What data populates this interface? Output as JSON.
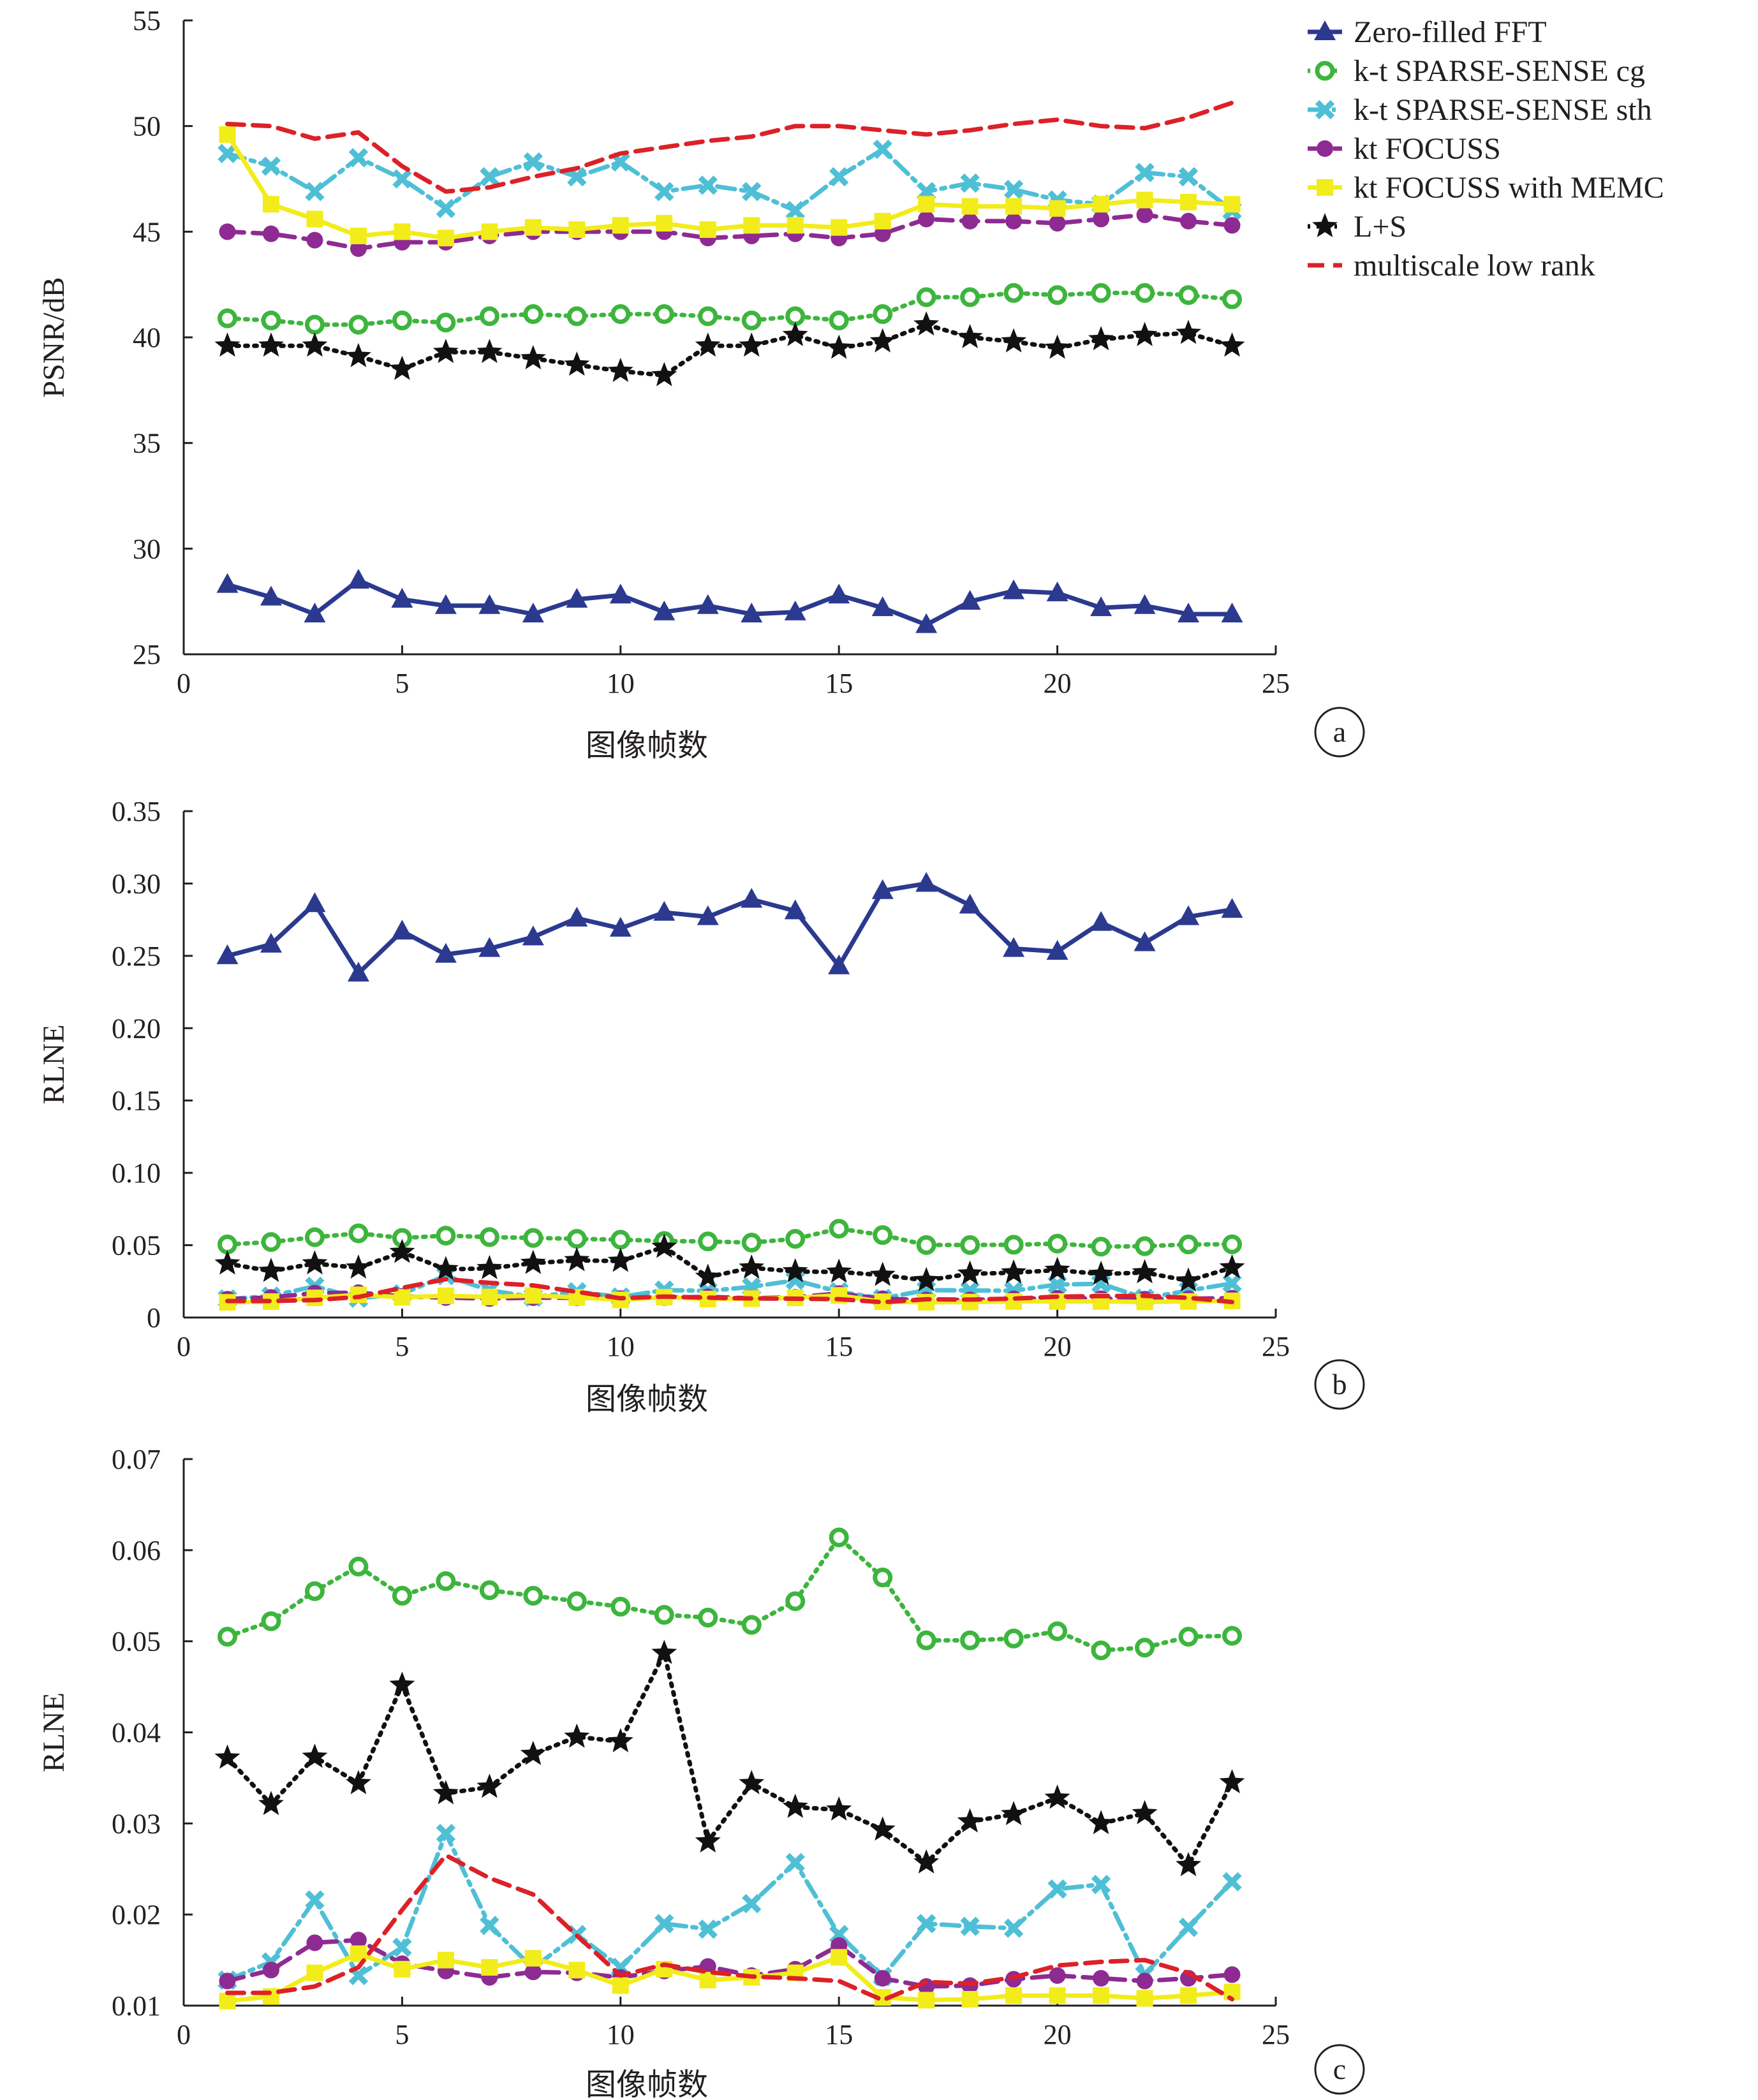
{
  "chart_data": [
    {
      "id": "a",
      "type": "line",
      "panel_label": "a",
      "xlabel": "图像帧数",
      "ylabel": "PSNR/dB",
      "xlim": [
        0,
        25
      ],
      "ylim": [
        25,
        55
      ],
      "xticks": [
        0,
        5,
        10,
        15,
        20,
        25
      ],
      "yticks": [
        25,
        30,
        35,
        40,
        45,
        50,
        55
      ],
      "x": [
        1,
        2,
        3,
        4,
        5,
        6,
        7,
        8,
        9,
        10,
        11,
        12,
        13,
        14,
        15,
        16,
        17,
        18,
        19,
        20,
        21,
        22,
        23,
        24
      ],
      "legend": true,
      "series": [
        {
          "key": "zf",
          "name": "Zero-filled FFT",
          "values": [
            28.3,
            27.7,
            26.9,
            28.5,
            27.6,
            27.3,
            27.3,
            26.9,
            27.6,
            27.8,
            27.0,
            27.3,
            26.9,
            27.0,
            27.8,
            27.2,
            26.4,
            27.5,
            28.0,
            27.9,
            27.2,
            27.3,
            26.9,
            26.9
          ]
        },
        {
          "key": "cg",
          "name": "k-t SPARSE-SENSE cg",
          "values": [
            40.9,
            40.8,
            40.6,
            40.6,
            40.8,
            40.7,
            41.0,
            41.1,
            41.0,
            41.1,
            41.1,
            41.0,
            40.8,
            41.0,
            40.8,
            41.1,
            41.9,
            41.9,
            42.1,
            42.0,
            42.1,
            42.1,
            42.0,
            41.8
          ]
        },
        {
          "key": "sth",
          "name": "k-t SPARSE-SENSE sth",
          "values": [
            48.7,
            48.1,
            46.9,
            48.5,
            47.5,
            46.1,
            47.6,
            48.3,
            47.6,
            48.3,
            46.9,
            47.2,
            46.9,
            46.0,
            47.6,
            48.9,
            46.9,
            47.3,
            47.0,
            46.5,
            46.3,
            47.8,
            47.6,
            46.0
          ]
        },
        {
          "key": "foc",
          "name": "kt FOCUSS",
          "values": [
            45.0,
            44.9,
            44.6,
            44.2,
            44.5,
            44.5,
            44.8,
            45.0,
            45.0,
            45.0,
            45.0,
            44.7,
            44.8,
            44.9,
            44.7,
            44.9,
            45.6,
            45.5,
            45.5,
            45.4,
            45.6,
            45.8,
            45.5,
            45.3
          ]
        },
        {
          "key": "memc",
          "name": "kt FOCUSS with MEMC",
          "values": [
            49.6,
            46.3,
            45.6,
            44.8,
            45.0,
            44.7,
            45.0,
            45.2,
            45.1,
            45.3,
            45.4,
            45.1,
            45.3,
            45.3,
            45.2,
            45.5,
            46.3,
            46.2,
            46.2,
            46.1,
            46.3,
            46.5,
            46.4,
            46.3
          ]
        },
        {
          "key": "ls",
          "name": "L+S",
          "values": [
            39.6,
            39.6,
            39.6,
            39.1,
            38.5,
            39.3,
            39.3,
            39.0,
            38.7,
            38.4,
            38.2,
            39.6,
            39.6,
            40.1,
            39.5,
            39.8,
            40.6,
            40.0,
            39.8,
            39.5,
            39.9,
            40.1,
            40.2,
            39.6
          ]
        },
        {
          "key": "msr",
          "name": "multiscale low rank",
          "values": [
            50.1,
            50.0,
            49.4,
            49.7,
            48.1,
            46.9,
            47.1,
            47.6,
            48.0,
            48.7,
            49.0,
            49.3,
            49.5,
            50.0,
            50.0,
            49.8,
            49.6,
            49.8,
            50.1,
            50.3,
            50.0,
            49.9,
            50.4,
            51.1
          ]
        }
      ]
    },
    {
      "id": "b",
      "type": "line",
      "panel_label": "b",
      "xlabel": "图像帧数",
      "ylabel": "RLNE",
      "xlim": [
        0,
        25
      ],
      "ylim": [
        0,
        0.35
      ],
      "xticks": [
        0,
        5,
        10,
        15,
        20,
        25
      ],
      "yticks": [
        0,
        0.05,
        0.1,
        0.15,
        0.2,
        0.25,
        0.3,
        0.35
      ],
      "ytick_labels": [
        "0",
        "0.05",
        "0.10",
        "0.15",
        "0.20",
        "0.25",
        "0.30",
        "0.35"
      ],
      "x": [
        1,
        2,
        3,
        4,
        5,
        6,
        7,
        8,
        9,
        10,
        11,
        12,
        13,
        14,
        15,
        16,
        17,
        18,
        19,
        20,
        21,
        22,
        23,
        24
      ],
      "legend": false,
      "series": [
        {
          "key": "zf",
          "name": "Zero-filled FFT",
          "values": [
            0.25,
            0.258,
            0.286,
            0.238,
            0.267,
            0.251,
            0.255,
            0.263,
            0.276,
            0.269,
            0.28,
            0.277,
            0.289,
            0.281,
            0.243,
            0.295,
            0.3,
            0.285,
            0.255,
            0.253,
            0.273,
            0.259,
            0.277,
            0.282
          ]
        },
        {
          "key": "cg",
          "name": "k-t SPARSE-SENSE cg",
          "values": [
            0.0505,
            0.0522,
            0.0555,
            0.0582,
            0.055,
            0.0566,
            0.0556,
            0.055,
            0.0544,
            0.0538,
            0.0529,
            0.0526,
            0.0518,
            0.0544,
            0.0614,
            0.057,
            0.0501,
            0.0501,
            0.0503,
            0.0511,
            0.049,
            0.0493,
            0.0505,
            0.0506
          ]
        },
        {
          "key": "sth",
          "name": "k-t SPARSE-SENSE sth",
          "values": [
            0.0128,
            0.0148,
            0.0216,
            0.0133,
            0.0164,
            0.0289,
            0.0188,
            0.0141,
            0.0178,
            0.0142,
            0.019,
            0.0184,
            0.0212,
            0.0257,
            0.0178,
            0.0132,
            0.019,
            0.0187,
            0.0185,
            0.0228,
            0.0233,
            0.0134,
            0.0186,
            0.0236
          ]
        },
        {
          "key": "foc",
          "name": "kt FOCUSS",
          "values": [
            0.0127,
            0.0139,
            0.0169,
            0.0172,
            0.0146,
            0.0138,
            0.0131,
            0.0137,
            0.0136,
            0.0131,
            0.0138,
            0.0143,
            0.0133,
            0.014,
            0.0166,
            0.013,
            0.0121,
            0.0122,
            0.0129,
            0.0133,
            0.013,
            0.0127,
            0.013,
            0.0134
          ]
        },
        {
          "key": "memc",
          "name": "kt FOCUSS with MEMC",
          "values": [
            0.0105,
            0.011,
            0.0136,
            0.0157,
            0.014,
            0.015,
            0.0142,
            0.0152,
            0.0139,
            0.0122,
            0.014,
            0.0128,
            0.0131,
            0.0136,
            0.0153,
            0.0109,
            0.0106,
            0.0107,
            0.0111,
            0.0111,
            0.0111,
            0.0108,
            0.0111,
            0.0115
          ]
        },
        {
          "key": "ls",
          "name": "L+S",
          "values": [
            0.0372,
            0.0321,
            0.0373,
            0.0344,
            0.0452,
            0.0333,
            0.034,
            0.0376,
            0.0395,
            0.039,
            0.0487,
            0.028,
            0.0344,
            0.0318,
            0.0315,
            0.0293,
            0.0257,
            0.0302,
            0.031,
            0.0328,
            0.03,
            0.0311,
            0.0254,
            0.0345
          ]
        },
        {
          "key": "msr",
          "name": "multiscale low rank",
          "values": [
            0.0114,
            0.0114,
            0.0121,
            0.0142,
            0.0205,
            0.0265,
            0.024,
            0.0222,
            0.0177,
            0.0133,
            0.0145,
            0.0137,
            0.0132,
            0.013,
            0.0127,
            0.0106,
            0.0126,
            0.0124,
            0.0131,
            0.0144,
            0.0148,
            0.015,
            0.0136,
            0.0107
          ]
        }
      ]
    },
    {
      "id": "c",
      "type": "line",
      "panel_label": "c",
      "xlabel": "图像帧数",
      "ylabel": "RLNE",
      "xlim": [
        0,
        25
      ],
      "ylim": [
        0.01,
        0.07
      ],
      "xticks": [
        0,
        5,
        10,
        15,
        20,
        25
      ],
      "yticks": [
        0.01,
        0.02,
        0.03,
        0.04,
        0.05,
        0.06,
        0.07
      ],
      "ytick_labels": [
        "0.01",
        "0.02",
        "0.03",
        "0.04",
        "0.05",
        "0.06",
        "0.07"
      ],
      "x": [
        1,
        2,
        3,
        4,
        5,
        6,
        7,
        8,
        9,
        10,
        11,
        12,
        13,
        14,
        15,
        16,
        17,
        18,
        19,
        20,
        21,
        22,
        23,
        24
      ],
      "legend": false,
      "series": [
        {
          "key": "cg",
          "name": "k-t SPARSE-SENSE cg",
          "values": [
            0.0505,
            0.0522,
            0.0555,
            0.0582,
            0.055,
            0.0566,
            0.0556,
            0.055,
            0.0544,
            0.0538,
            0.0529,
            0.0526,
            0.0518,
            0.0544,
            0.0614,
            0.057,
            0.0501,
            0.0501,
            0.0503,
            0.0511,
            0.049,
            0.0493,
            0.0505,
            0.0506
          ]
        },
        {
          "key": "sth",
          "name": "k-t SPARSE-SENSE sth",
          "values": [
            0.0128,
            0.0148,
            0.0216,
            0.0133,
            0.0164,
            0.0289,
            0.0188,
            0.0141,
            0.0178,
            0.0142,
            0.019,
            0.0184,
            0.0212,
            0.0257,
            0.0178,
            0.0132,
            0.019,
            0.0187,
            0.0185,
            0.0228,
            0.0233,
            0.0134,
            0.0186,
            0.0236
          ]
        },
        {
          "key": "foc",
          "name": "kt FOCUSS",
          "values": [
            0.0127,
            0.0139,
            0.0169,
            0.0172,
            0.0146,
            0.0138,
            0.0131,
            0.0137,
            0.0136,
            0.0131,
            0.0138,
            0.0143,
            0.0133,
            0.014,
            0.0166,
            0.013,
            0.0121,
            0.0122,
            0.0129,
            0.0133,
            0.013,
            0.0127,
            0.013,
            0.0134
          ]
        },
        {
          "key": "memc",
          "name": "kt FOCUSS with MEMC",
          "values": [
            0.0105,
            0.011,
            0.0136,
            0.0157,
            0.014,
            0.015,
            0.0142,
            0.0152,
            0.0139,
            0.0122,
            0.014,
            0.0128,
            0.0131,
            0.0136,
            0.0153,
            0.0109,
            0.0106,
            0.0107,
            0.0111,
            0.0111,
            0.0111,
            0.0108,
            0.0111,
            0.0115
          ]
        },
        {
          "key": "ls",
          "name": "L+S",
          "values": [
            0.0372,
            0.0321,
            0.0373,
            0.0344,
            0.0452,
            0.0333,
            0.034,
            0.0376,
            0.0395,
            0.039,
            0.0487,
            0.028,
            0.0344,
            0.0318,
            0.0315,
            0.0293,
            0.0257,
            0.0302,
            0.031,
            0.0328,
            0.03,
            0.0311,
            0.0254,
            0.0345
          ]
        },
        {
          "key": "msr",
          "name": "multiscale low rank",
          "values": [
            0.0114,
            0.0114,
            0.0121,
            0.0142,
            0.0205,
            0.0265,
            0.024,
            0.0222,
            0.0177,
            0.0133,
            0.0145,
            0.0137,
            0.0132,
            0.013,
            0.0127,
            0.0106,
            0.0126,
            0.0124,
            0.0131,
            0.0144,
            0.0148,
            0.015,
            0.0136,
            0.0107
          ]
        }
      ]
    }
  ],
  "series_style": {
    "zf": {
      "color": "#2b3a8f",
      "dash": "none",
      "marker": "triangle"
    },
    "cg": {
      "color": "#3db53d",
      "dash": "4 10",
      "marker": "ring"
    },
    "sth": {
      "color": "#4fbfd6",
      "dash": "28 10 6 10",
      "marker": "cross"
    },
    "foc": {
      "color": "#8e2b92",
      "dash": "26 14",
      "marker": "dot"
    },
    "memc": {
      "color": "#f2ec1a",
      "dash": "none",
      "marker": "square"
    },
    "ls": {
      "color": "#111111",
      "dash": "4 10",
      "marker": "star"
    },
    "msr": {
      "color": "#dc2128",
      "dash": "26 14",
      "marker": "none"
    }
  }
}
